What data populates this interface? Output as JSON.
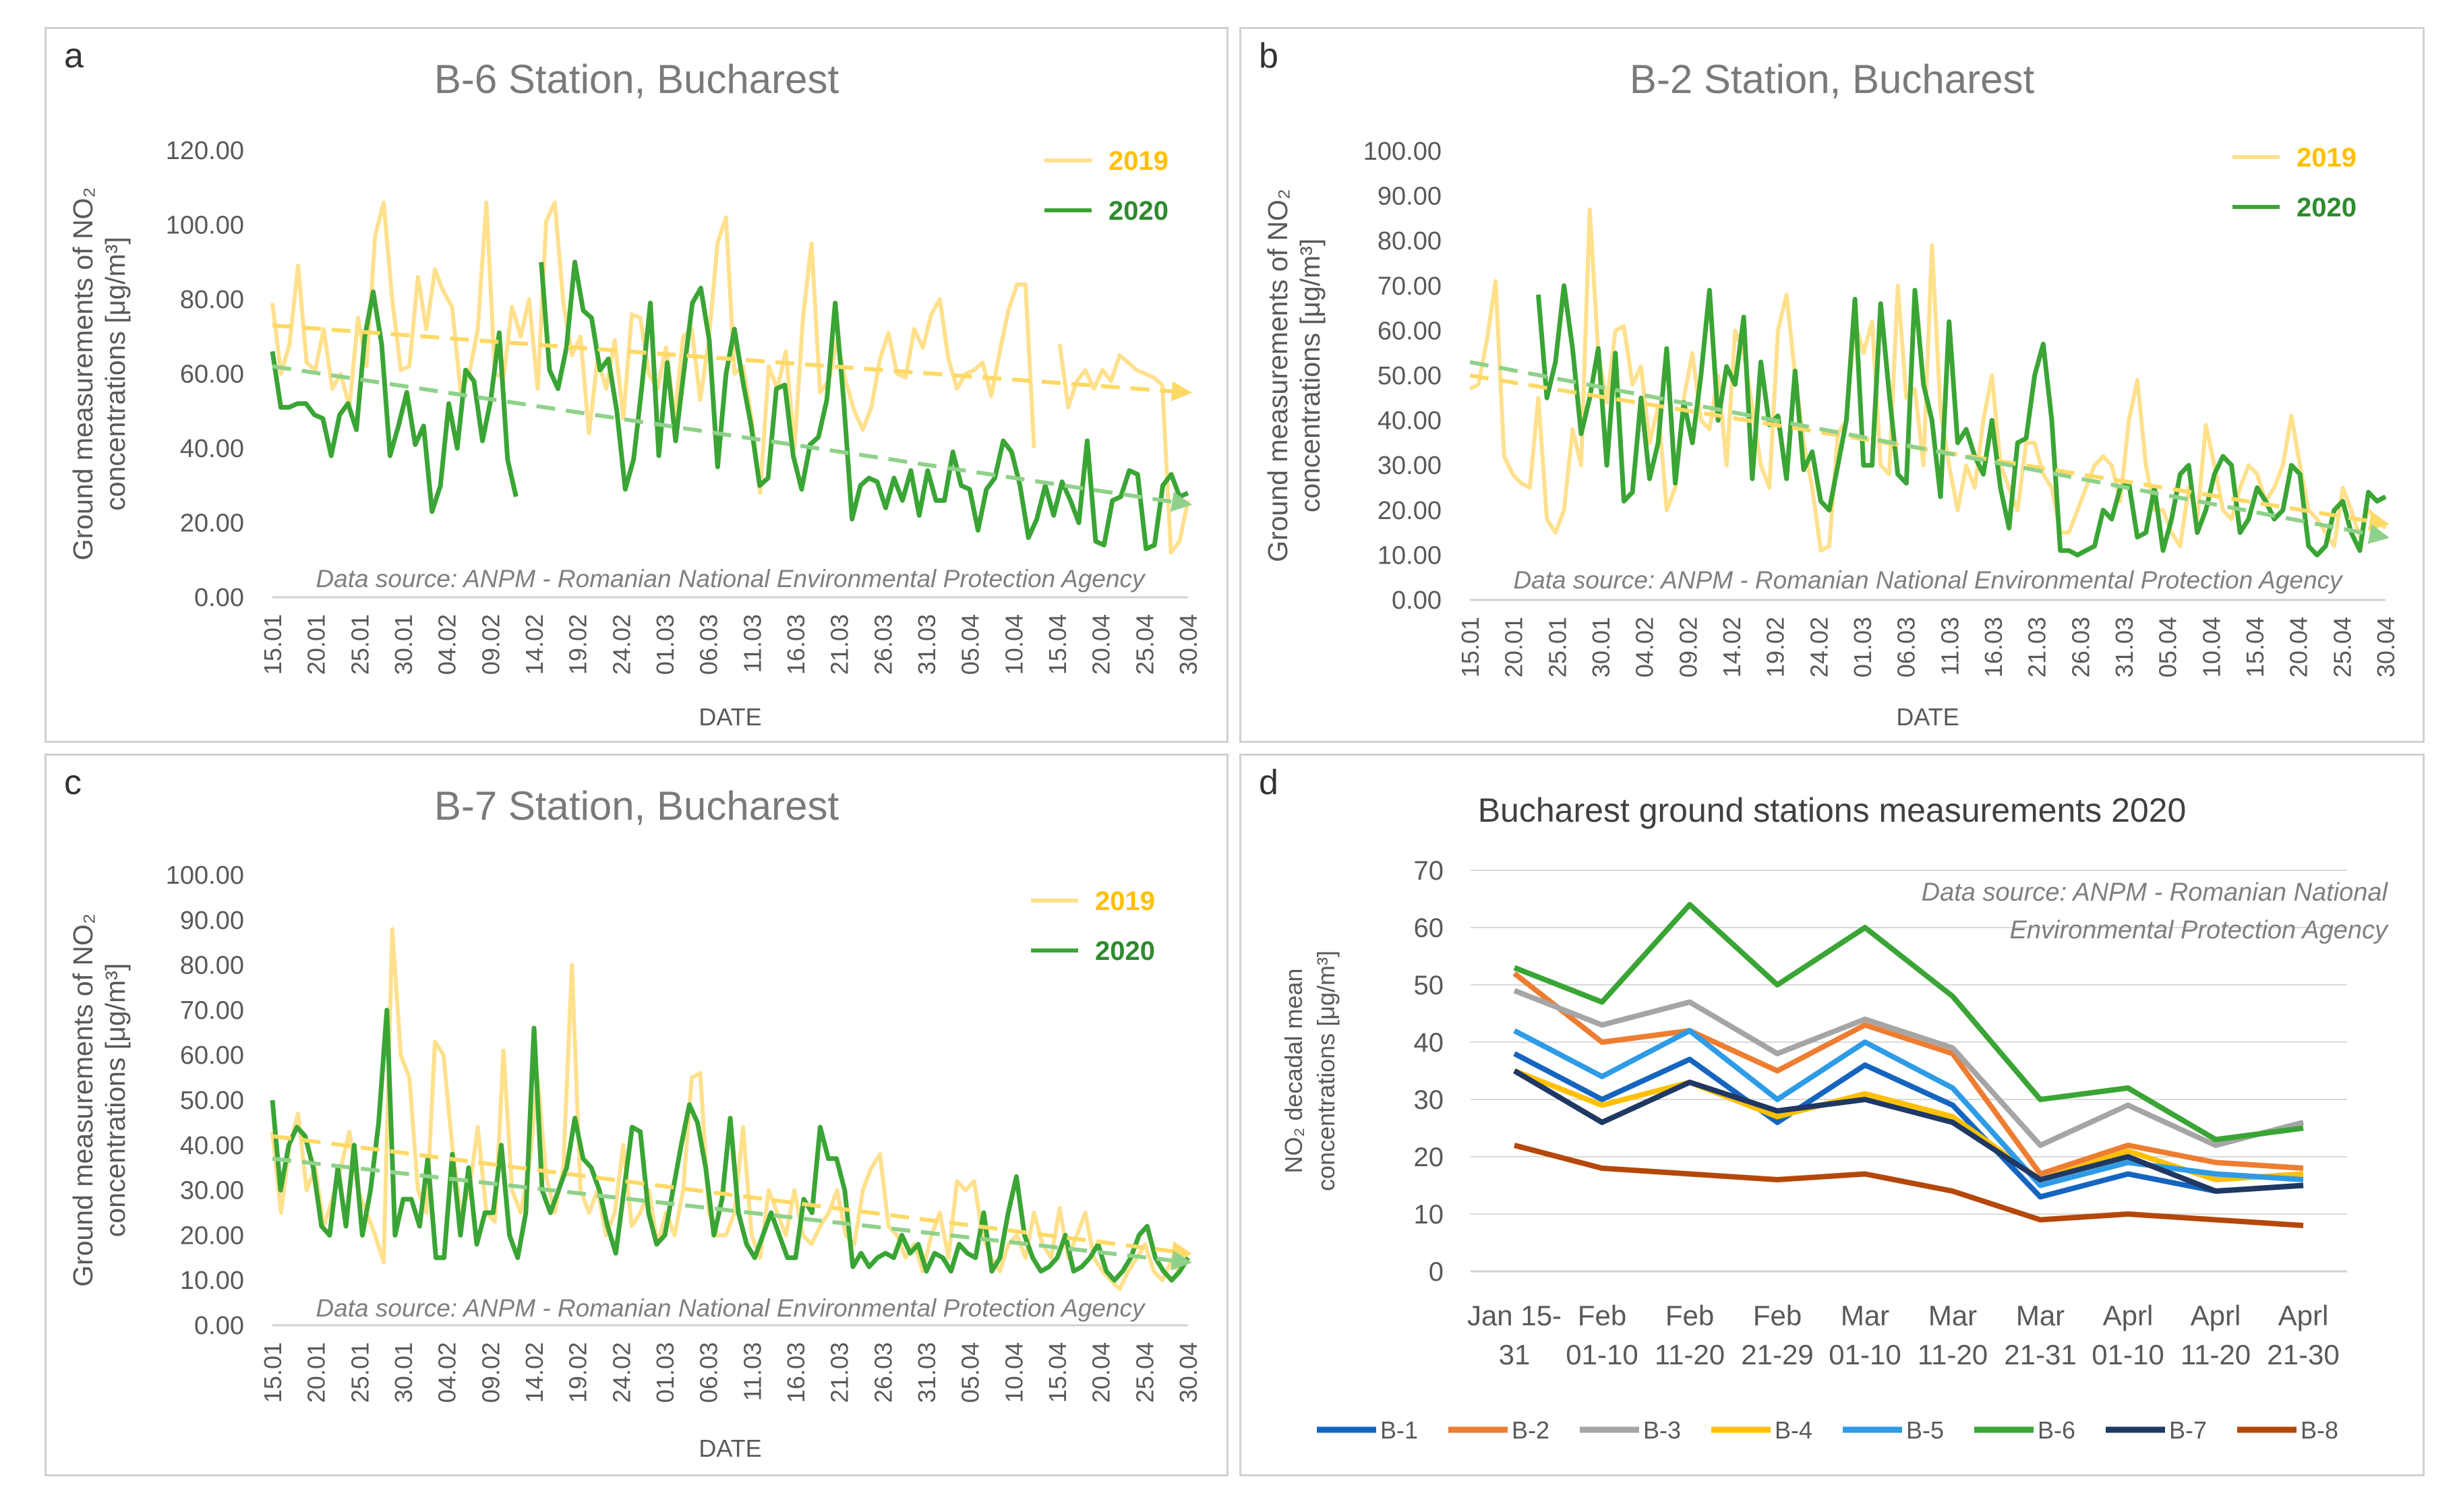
{
  "chart_data": [
    {
      "panel": "a",
      "type": "line",
      "title": "B-6 Station, Bucharest",
      "xlabel": "DATE",
      "ylabel": [
        "Ground measurements of NO₂",
        "concentrations [μg/m³]"
      ],
      "ylim": [
        0,
        120
      ],
      "yticks": [
        "0.00",
        "20.00",
        "40.00",
        "60.00",
        "80.00",
        "100.00",
        "120.00"
      ],
      "xticks": [
        "15.01",
        "20.01",
        "25.01",
        "30.01",
        "04.02",
        "09.02",
        "14.02",
        "19.02",
        "24.02",
        "01.03",
        "06.03",
        "11.03",
        "16.03",
        "21.03",
        "26.03",
        "31.03",
        "05.04",
        "10.04",
        "15.04",
        "20.04",
        "25.04",
        "30.04"
      ],
      "source": "Data source: ANPM - Romanian National Environmental Protection Agency",
      "legend_position": "top-right",
      "series": [
        {
          "name": "2019",
          "color": "#ffe08c",
          "values": [
            79,
            60,
            68,
            89,
            63,
            61,
            72,
            56,
            60,
            51,
            75,
            62,
            97,
            106,
            80,
            61,
            62,
            86,
            72,
            88,
            82,
            78,
            55,
            60,
            72,
            106,
            60,
            59,
            78,
            70,
            80,
            56,
            101,
            106,
            79,
            65,
            70,
            44,
            64,
            56,
            69,
            48,
            76,
            75,
            60,
            56,
            67,
            48,
            70,
            72,
            53,
            69,
            95,
            102,
            60,
            62,
            48,
            28,
            62,
            56,
            66,
            40,
            75,
            95,
            55,
            58,
            69,
            58,
            50,
            45,
            51,
            64,
            71,
            60,
            59,
            72,
            67,
            76,
            80,
            64,
            56,
            60,
            61,
            63,
            54,
            66,
            77,
            84,
            84,
            40,
            null,
            null,
            68,
            51,
            58,
            61,
            56,
            61,
            58,
            65,
            63,
            61,
            60,
            59,
            57,
            12,
            15,
            26
          ]
        },
        {
          "name": "2020",
          "color": "#3aa535",
          "values": [
            66,
            51,
            51,
            52,
            52,
            49,
            48,
            38,
            49,
            52,
            45,
            70,
            82,
            68,
            38,
            46,
            55,
            41,
            46,
            23,
            30,
            52,
            40,
            61,
            58,
            42,
            53,
            71,
            37,
            27,
            null,
            null,
            90,
            61,
            56,
            67,
            90,
            77,
            75,
            61,
            64,
            50,
            29,
            37,
            57,
            79,
            38,
            63,
            42,
            61,
            79,
            83,
            69,
            35,
            60,
            72,
            58,
            46,
            30,
            32,
            56,
            57,
            38,
            29,
            41,
            43,
            53,
            79,
            53,
            21,
            30,
            32,
            31,
            24,
            32,
            26,
            34,
            22,
            34,
            26,
            26,
            39,
            30,
            29,
            18,
            29,
            32,
            42,
            39,
            30,
            16,
            21,
            30,
            22,
            31,
            26,
            20,
            42,
            15,
            14,
            26,
            27,
            34,
            33,
            13,
            14,
            30,
            33,
            27,
            28
          ]
        }
      ],
      "trendlines": [
        {
          "series": "2019",
          "from": 73,
          "to": 55
        },
        {
          "series": "2020",
          "from": 62,
          "to": 25
        }
      ]
    },
    {
      "panel": "b",
      "type": "line",
      "title": "B-2 Station, Bucharest",
      "xlabel": "DATE",
      "ylabel": [
        "Ground measurements of NO₂",
        "concentrations [μg/m³]"
      ],
      "ylim": [
        0,
        100
      ],
      "yticks": [
        "0.00",
        "10.00",
        "20.00",
        "30.00",
        "40.00",
        "50.00",
        "60.00",
        "70.00",
        "80.00",
        "90.00",
        "100.00"
      ],
      "xticks": [
        "15.01",
        "20.01",
        "25.01",
        "30.01",
        "04.02",
        "09.02",
        "14.02",
        "19.02",
        "24.02",
        "01.03",
        "06.03",
        "11.03",
        "16.03",
        "21.03",
        "26.03",
        "31.03",
        "05.04",
        "10.04",
        "15.04",
        "20.04",
        "25.04",
        "30.04"
      ],
      "source": "Data source: ANPM - Romanian National Environmental Protection Agency",
      "legend_position": "top-right",
      "series": [
        {
          "name": "2019",
          "color": "#ffe08c",
          "values": [
            47,
            48,
            58,
            71,
            32,
            28,
            26,
            25,
            45,
            18,
            15,
            20,
            38,
            30,
            87,
            55,
            44,
            60,
            61,
            48,
            52,
            35,
            43,
            20,
            25,
            45,
            55,
            40,
            38,
            50,
            30,
            60,
            55,
            43,
            30,
            25,
            60,
            68,
            50,
            35,
            25,
            11,
            12,
            37,
            40,
            62,
            55,
            62,
            30,
            28,
            70,
            45,
            47,
            30,
            79,
            42,
            30,
            20,
            30,
            25,
            40,
            50,
            30,
            25,
            20,
            35,
            35,
            28,
            25,
            15,
            15,
            20,
            25,
            30,
            32,
            30,
            22,
            40,
            49,
            30,
            20,
            20,
            15,
            12,
            25,
            18,
            39,
            30,
            20,
            18,
            25,
            30,
            28,
            22,
            25,
            30,
            41,
            30,
            20,
            18,
            15,
            12,
            25,
            20,
            14,
            20,
            18,
            16
          ]
        },
        {
          "name": "2020",
          "color": "#3aa535",
          "values": [
            null,
            null,
            null,
            null,
            null,
            null,
            null,
            null,
            68,
            45,
            53,
            70,
            56,
            37,
            45,
            56,
            30,
            55,
            22,
            24,
            45,
            27,
            35,
            56,
            26,
            44,
            35,
            50,
            69,
            40,
            52,
            48,
            63,
            27,
            53,
            39,
            41,
            27,
            51,
            29,
            33,
            22,
            20,
            30,
            40,
            67,
            30,
            30,
            66,
            46,
            28,
            26,
            69,
            48,
            40,
            23,
            62,
            35,
            38,
            32,
            28,
            40,
            25,
            16,
            35,
            36,
            50,
            57,
            40,
            11,
            11,
            10,
            11,
            12,
            20,
            18,
            25,
            26,
            14,
            15,
            25,
            11,
            18,
            28,
            30,
            15,
            20,
            28,
            32,
            30,
            15,
            18,
            25,
            22,
            18,
            20,
            30,
            28,
            12,
            10,
            12,
            20,
            22,
            15,
            11,
            24,
            22,
            23
          ]
        }
      ],
      "trendlines": [
        {
          "series": "2019",
          "from": 50,
          "to": 17
        },
        {
          "series": "2020",
          "from": 53,
          "to": 14
        }
      ]
    },
    {
      "panel": "c",
      "type": "line",
      "title": "B-7 Station, Bucharest",
      "xlabel": "DATE",
      "ylabel": [
        "Ground measurements of NO₂",
        "concentrations [μg/m³]"
      ],
      "ylim": [
        0,
        100
      ],
      "yticks": [
        "0.00",
        "10.00",
        "20.00",
        "30.00",
        "40.00",
        "50.00",
        "60.00",
        "70.00",
        "80.00",
        "90.00",
        "100.00"
      ],
      "xticks": [
        "15.01",
        "20.01",
        "25.01",
        "30.01",
        "04.02",
        "09.02",
        "14.02",
        "19.02",
        "24.02",
        "01.03",
        "06.03",
        "11.03",
        "16.03",
        "21.03",
        "26.03",
        "31.03",
        "05.04",
        "10.04",
        "15.04",
        "20.04",
        "25.04",
        "30.04"
      ],
      "source": "Data source: ANPM - Romanian National Environmental Protection Agency",
      "legend_position": "top-right",
      "series": [
        {
          "name": "2019",
          "color": "#ffe08c",
          "values": [
            43,
            25,
            40,
            47,
            30,
            35,
            22,
            28,
            35,
            43,
            30,
            25,
            20,
            14,
            88,
            60,
            55,
            30,
            25,
            63,
            60,
            40,
            25,
            30,
            44,
            25,
            23,
            61,
            30,
            25,
            35,
            55,
            33,
            25,
            35,
            80,
            30,
            25,
            30,
            20,
            25,
            40,
            22,
            25,
            30,
            18,
            25,
            20,
            30,
            55,
            56,
            25,
            20,
            20,
            25,
            44,
            20,
            15,
            30,
            25,
            20,
            30,
            20,
            18,
            22,
            25,
            30,
            20,
            18,
            30,
            35,
            38,
            22,
            20,
            15,
            18,
            12,
            20,
            25,
            15,
            32,
            30,
            32,
            20,
            15,
            12,
            18,
            20,
            15,
            25,
            18,
            15,
            26,
            15,
            20,
            25,
            15,
            12,
            10,
            8,
            12,
            15,
            18,
            12,
            10,
            14,
            12,
            16
          ]
        },
        {
          "name": "2020",
          "color": "#3aa535",
          "values": [
            50,
            30,
            40,
            44,
            42,
            35,
            22,
            20,
            35,
            22,
            40,
            20,
            30,
            45,
            70,
            20,
            28,
            28,
            22,
            37,
            15,
            15,
            38,
            20,
            35,
            18,
            25,
            25,
            40,
            20,
            15,
            25,
            66,
            30,
            25,
            30,
            35,
            46,
            37,
            35,
            30,
            22,
            16,
            30,
            44,
            43,
            25,
            18,
            20,
            30,
            40,
            49,
            45,
            35,
            20,
            28,
            46,
            25,
            18,
            15,
            20,
            25,
            20,
            15,
            15,
            28,
            25,
            44,
            37,
            37,
            30,
            13,
            16,
            13,
            15,
            16,
            15,
            20,
            16,
            18,
            12,
            16,
            15,
            12,
            18,
            16,
            15,
            25,
            12,
            15,
            25,
            33,
            20,
            15,
            12,
            13,
            15,
            20,
            12,
            13,
            15,
            18,
            12,
            10,
            12,
            15,
            20,
            22,
            15,
            12,
            10,
            12,
            15
          ]
        }
      ],
      "trendlines": [
        {
          "series": "2019",
          "from": 42,
          "to": 16
        },
        {
          "series": "2020",
          "from": 37,
          "to": 14
        }
      ]
    },
    {
      "panel": "d",
      "type": "line",
      "title": "Bucharest ground stations measurements 2020",
      "ylabel": [
        "NO₂ decadal mean",
        "concentrations [μg/m³]"
      ],
      "ylim": [
        0,
        70
      ],
      "yticks": [
        "0",
        "10",
        "20",
        "30",
        "40",
        "50",
        "60",
        "70"
      ],
      "categories": [
        [
          "Jan 15-",
          "31"
        ],
        [
          "Feb",
          "01-10"
        ],
        [
          "Feb",
          "11-20"
        ],
        [
          "Feb",
          "21-29"
        ],
        [
          "Mar",
          "01-10"
        ],
        [
          "Mar",
          "11-20"
        ],
        [
          "Mar",
          "21-31"
        ],
        [
          "Aprl",
          "01-10"
        ],
        [
          "Aprl",
          "11-20"
        ],
        [
          "Aprl",
          "21-30"
        ]
      ],
      "source": [
        "Data source: ANPM - Romanian National",
        "Environmental Protection Agency"
      ],
      "legend_position": "bottom",
      "series": [
        {
          "name": "B-1",
          "color": "#1565c0",
          "values": [
            38,
            30,
            37,
            26,
            36,
            29,
            13,
            17,
            14,
            15
          ]
        },
        {
          "name": "B-2",
          "color": "#ed7d31",
          "values": [
            52,
            40,
            42,
            35,
            43,
            38,
            17,
            22,
            19,
            18
          ]
        },
        {
          "name": "B-3",
          "color": "#a5a5a5",
          "values": [
            49,
            43,
            47,
            38,
            44,
            39,
            22,
            29,
            22,
            26
          ]
        },
        {
          "name": "B-4",
          "color": "#ffc000",
          "values": [
            35,
            29,
            33,
            27,
            31,
            27,
            16,
            21,
            16,
            17
          ]
        },
        {
          "name": "B-5",
          "color": "#2e9be6",
          "values": [
            42,
            34,
            42,
            30,
            40,
            32,
            15,
            19,
            17,
            16
          ]
        },
        {
          "name": "B-6",
          "color": "#3aa535",
          "values": [
            53,
            47,
            64,
            50,
            60,
            48,
            30,
            32,
            23,
            25
          ]
        },
        {
          "name": "B-7",
          "color": "#1f3864",
          "values": [
            35,
            26,
            33,
            28,
            30,
            26,
            16,
            20,
            14,
            15
          ]
        },
        {
          "name": "B-8",
          "color": "#b5470b",
          "values": [
            22,
            18,
            17,
            16,
            17,
            14,
            9,
            10,
            9,
            8
          ]
        }
      ]
    }
  ]
}
